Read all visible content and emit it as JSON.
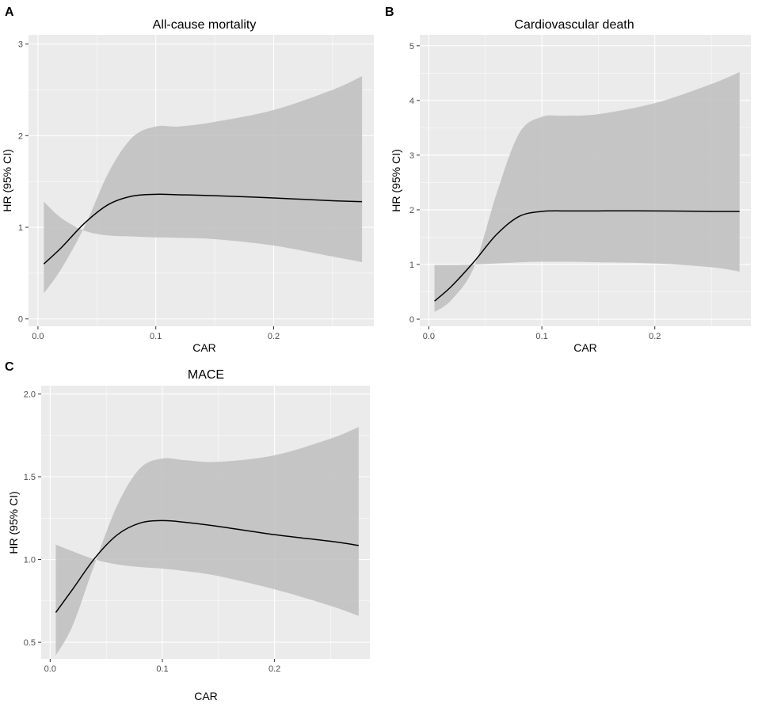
{
  "chart_data": [
    {
      "type": "line",
      "panel": "A",
      "title": "All-cause mortality",
      "xlabel": "CAR",
      "ylabel": "HR (95% CI)",
      "xlim": [
        -0.008,
        0.285
      ],
      "ylim": [
        -0.08,
        3.1
      ],
      "xticks": [
        0.0,
        0.1,
        0.2
      ],
      "xtick_labels": [
        "0.0",
        "0.1",
        "0.2"
      ],
      "yticks": [
        0,
        1,
        2,
        3
      ],
      "ytick_labels": [
        "0",
        "1",
        "2",
        "3"
      ],
      "x": [
        0.005,
        0.02,
        0.04,
        0.06,
        0.08,
        0.1,
        0.12,
        0.15,
        0.2,
        0.25,
        0.275
      ],
      "series": [
        {
          "name": "HR",
          "values": [
            0.6,
            0.78,
            1.05,
            1.25,
            1.34,
            1.36,
            1.355,
            1.345,
            1.32,
            1.29,
            1.28
          ]
        },
        {
          "name": "Lower 95% CI",
          "values": [
            1.28,
            1.1,
            0.96,
            0.91,
            0.9,
            0.89,
            0.885,
            0.87,
            0.8,
            0.68,
            0.62
          ]
        },
        {
          "name": "Upper 95% CI",
          "values": [
            0.28,
            0.55,
            1.02,
            1.6,
            1.98,
            2.1,
            2.1,
            2.15,
            2.28,
            2.5,
            2.65
          ]
        }
      ]
    },
    {
      "type": "line",
      "panel": "B",
      "title": "Cardiovascular death",
      "xlabel": "CAR",
      "ylabel": "HR (95% CI)",
      "xlim": [
        -0.008,
        0.285
      ],
      "ylim": [
        -0.13,
        5.2
      ],
      "xticks": [
        0.0,
        0.1,
        0.2
      ],
      "xtick_labels": [
        "0.0",
        "0.1",
        "0.2"
      ],
      "yticks": [
        0,
        1,
        2,
        3,
        4,
        5
      ],
      "ytick_labels": [
        "0",
        "1",
        "2",
        "3",
        "4",
        "5"
      ],
      "x": [
        0.005,
        0.02,
        0.04,
        0.06,
        0.08,
        0.1,
        0.12,
        0.15,
        0.2,
        0.25,
        0.275
      ],
      "series": [
        {
          "name": "HR",
          "values": [
            0.33,
            0.6,
            1.05,
            1.55,
            1.88,
            1.97,
            1.98,
            1.98,
            1.98,
            1.97,
            1.97
          ]
        },
        {
          "name": "Lower 95% CI",
          "values": [
            0.99,
            0.99,
            1.0,
            1.02,
            1.04,
            1.05,
            1.05,
            1.04,
            1.02,
            0.95,
            0.87
          ]
        },
        {
          "name": "Upper 95% CI",
          "values": [
            0.13,
            0.35,
            0.95,
            2.3,
            3.4,
            3.7,
            3.72,
            3.75,
            3.95,
            4.3,
            4.52
          ]
        }
      ]
    },
    {
      "type": "line",
      "panel": "C",
      "title": "MACE",
      "xlabel": "CAR",
      "ylabel": "HR (95% CI)",
      "xlim": [
        -0.008,
        0.285
      ],
      "ylim": [
        0.4,
        2.05
      ],
      "xticks": [
        0.0,
        0.1,
        0.2
      ],
      "xtick_labels": [
        "0.0",
        "0.1",
        "0.2"
      ],
      "yticks": [
        0.5,
        1.0,
        1.5,
        2.0
      ],
      "ytick_labels": [
        "0.5",
        "1.0",
        "1.5",
        "2.0"
      ],
      "x": [
        0.005,
        0.02,
        0.04,
        0.06,
        0.08,
        0.1,
        0.12,
        0.15,
        0.2,
        0.25,
        0.275
      ],
      "series": [
        {
          "name": "HR",
          "values": [
            0.68,
            0.82,
            1.01,
            1.15,
            1.22,
            1.235,
            1.225,
            1.2,
            1.15,
            1.11,
            1.085
          ]
        },
        {
          "name": "Lower 95% CI",
          "values": [
            1.09,
            1.05,
            1.0,
            0.97,
            0.955,
            0.945,
            0.93,
            0.9,
            0.82,
            0.72,
            0.66
          ]
        },
        {
          "name": "Upper 95% CI",
          "values": [
            0.42,
            0.6,
            0.98,
            1.33,
            1.55,
            1.61,
            1.6,
            1.59,
            1.63,
            1.73,
            1.8
          ]
        }
      ]
    }
  ],
  "colors": {
    "panel_bg": "#ebebeb",
    "grid_major": "#ffffff",
    "ribbon": "#bebebe",
    "line": "#000000",
    "tick_text": "#4d4d4d",
    "tick_mark": "#333333"
  }
}
